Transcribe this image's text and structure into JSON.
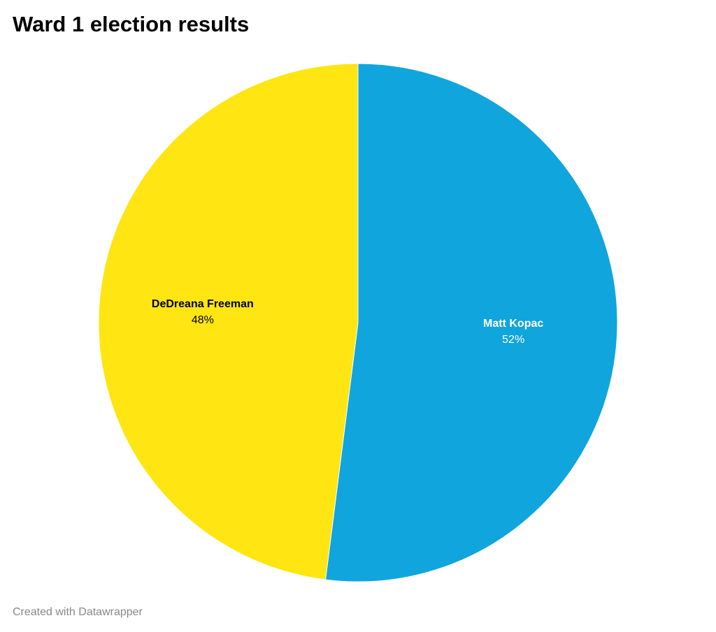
{
  "chart_data": {
    "type": "pie",
    "title": "Ward 1 election results",
    "categories": [
      "Matt Kopac",
      "DeDreana Freeman"
    ],
    "values": [
      52,
      48
    ],
    "value_labels": [
      "52%",
      "48%"
    ],
    "colors": [
      "#10a5dc",
      "#ffe511"
    ],
    "credit": "Created with Datawrapper"
  }
}
